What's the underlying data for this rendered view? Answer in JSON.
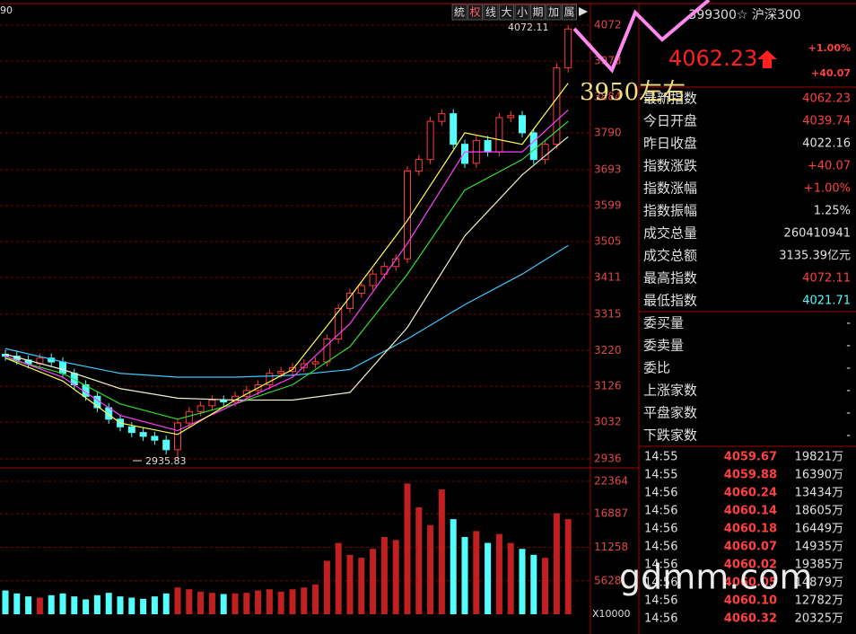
{
  "corner_label": "90",
  "toolbar": [
    "統",
    "权",
    "线",
    "大",
    "小",
    "期",
    "加",
    "属"
  ],
  "chart_data": {
    "type": "candlestick",
    "open": [
      3210,
      3205,
      3195,
      3185,
      3200,
      3190,
      3160,
      3130,
      3100,
      3070,
      3040,
      3020,
      3005,
      2995,
      2985,
      2960,
      3030,
      3060,
      3075,
      3090,
      3085,
      3100,
      3115,
      3130,
      3160,
      3165,
      3175,
      3185,
      3190,
      3250,
      3330,
      3370,
      3390,
      3420,
      3440,
      3460,
      3690,
      3720,
      3820,
      3840,
      3760,
      3710,
      3770,
      3740,
      3830,
      3835,
      3790,
      3720,
      3760,
      3960
    ],
    "high": [
      3222,
      3217,
      3207,
      3212,
      3212,
      3202,
      3172,
      3142,
      3112,
      3082,
      3052,
      3032,
      3017,
      3007,
      2997,
      3042,
      3072,
      3087,
      3102,
      3102,
      3112,
      3127,
      3142,
      3172,
      3177,
      3187,
      3197,
      3202,
      3262,
      3342,
      3382,
      3402,
      3432,
      3452,
      3472,
      3702,
      3732,
      3832,
      3852,
      3852,
      3772,
      3782,
      3782,
      3842,
      3847,
      3847,
      3802,
      3772,
      3972,
      4072
    ],
    "low": [
      3193,
      3183,
      3173,
      3173,
      3178,
      3148,
      3118,
      3088,
      3058,
      3028,
      3008,
      2993,
      2983,
      2973,
      2948,
      2936,
      3018,
      3048,
      3063,
      3073,
      3073,
      3088,
      3103,
      3118,
      3148,
      3153,
      3163,
      3173,
      3178,
      3238,
      3318,
      3358,
      3378,
      3408,
      3428,
      3448,
      3678,
      3708,
      3808,
      3748,
      3698,
      3698,
      3728,
      3728,
      3818,
      3778,
      3708,
      3708,
      3748,
      3948
    ],
    "close": [
      3205,
      3195,
      3185,
      3200,
      3190,
      3160,
      3130,
      3100,
      3070,
      3040,
      3020,
      3005,
      2995,
      2985,
      2960,
      3030,
      3060,
      3075,
      3090,
      3085,
      3100,
      3115,
      3130,
      3160,
      3165,
      3175,
      3185,
      3190,
      3250,
      3330,
      3370,
      3390,
      3420,
      3440,
      3460,
      3690,
      3720,
      3820,
      3840,
      3760,
      3710,
      3770,
      3740,
      3830,
      3835,
      3790,
      3720,
      3760,
      3960,
      4062
    ],
    "ylim": [
      2936,
      4072
    ],
    "yticks": [
      4072,
      3978,
      3884,
      3790,
      3693,
      3599,
      3505,
      3411,
      3315,
      3220,
      3126,
      3032,
      2936
    ],
    "high_label": "4072.11",
    "low_label": "2935.83",
    "annotation": "3950左右",
    "up_color": "#ff3c3c",
    "down_color": "#54fcfc",
    "grid": true,
    "ma": [
      {
        "color": "#3ec8ff",
        "x": [
          0,
          5,
          10,
          15,
          20,
          25,
          30,
          35,
          40,
          45,
          49
        ],
        "values": [
          3225,
          3190,
          3160,
          3150,
          3150,
          3155,
          3170,
          3250,
          3340,
          3420,
          3495
        ]
      },
      {
        "color": "#f0f0c8",
        "x": [
          0,
          5,
          10,
          15,
          20,
          25,
          30,
          35,
          40,
          45,
          49
        ],
        "values": [
          3210,
          3170,
          3120,
          3095,
          3090,
          3090,
          3110,
          3280,
          3520,
          3680,
          3780
        ]
      },
      {
        "color": "#30e030",
        "x": [
          0,
          5,
          10,
          15,
          20,
          25,
          30,
          35,
          40,
          45,
          49
        ],
        "values": [
          3200,
          3160,
          3080,
          3040,
          3080,
          3130,
          3230,
          3420,
          3640,
          3720,
          3820
        ]
      },
      {
        "color": "#ff40ff",
        "x": [
          0,
          5,
          10,
          15,
          20,
          25,
          30,
          35,
          40,
          45,
          49
        ],
        "values": [
          3205,
          3150,
          3050,
          3010,
          3080,
          3150,
          3290,
          3500,
          3740,
          3740,
          3850
        ]
      },
      {
        "color": "#ffff50",
        "x": [
          0,
          5,
          10,
          15,
          20,
          25,
          30,
          35,
          40,
          45,
          49
        ],
        "values": [
          3200,
          3140,
          3030,
          3000,
          3090,
          3170,
          3360,
          3560,
          3790,
          3760,
          3920
        ]
      }
    ],
    "volume": {
      "values": [
        4000,
        3500,
        3000,
        2800,
        3200,
        3500,
        3000,
        2500,
        3200,
        3600,
        3000,
        2800,
        2600,
        3000,
        3500,
        4500,
        4200,
        3800,
        3600,
        3400,
        3500,
        3600,
        4000,
        4200,
        3800,
        4200,
        4500,
        5000,
        9000,
        12000,
        10000,
        9500,
        11000,
        13000,
        12500,
        22000,
        18000,
        15000,
        21000,
        16000,
        13000,
        14000,
        12000,
        13500,
        12000,
        11000,
        10000,
        9500,
        17000,
        16000
      ],
      "ylim": [
        0,
        22364
      ],
      "yticks": [
        22364,
        16887,
        11258,
        5628
      ],
      "unit_label": "X10000"
    }
  },
  "quote": {
    "code_name": "399300☆ 沪深300",
    "price": "4062.23",
    "change_pct": "+1.00%",
    "change": "+40.07",
    "rows": [
      [
        "最新指数",
        "4062.23",
        "#ff4040"
      ],
      [
        "今日开盘",
        "4039.74",
        "#ff4040"
      ],
      [
        "昨日收盘",
        "4022.16",
        "#e0e0e0"
      ],
      [
        "指数涨跌",
        "+40.07",
        "#ff4040"
      ],
      [
        "指数涨幅",
        "+1.00%",
        "#ff4040"
      ],
      [
        "指数振幅",
        "1.25%",
        "#e0e0e0"
      ],
      [
        "成交总量",
        "260410941",
        "#e0e0e0"
      ],
      [
        "成交总额",
        "3135.39亿元",
        "#e0e0e0"
      ],
      [
        "最高指数",
        "4072.11",
        "#ff4040"
      ],
      [
        "最低指数",
        "4021.71",
        "#54fcfc"
      ]
    ],
    "rows2": [
      [
        "委买量",
        "-"
      ],
      [
        "委卖量",
        "-"
      ],
      [
        "委比",
        "-"
      ],
      [
        "上涨家数",
        "-"
      ],
      [
        "平盘家数",
        "-"
      ],
      [
        "下跌家数",
        "-"
      ]
    ],
    "trades": [
      [
        "14:55",
        "4059.67",
        "19821万"
      ],
      [
        "14:55",
        "4059.88",
        "16390万"
      ],
      [
        "14:56",
        "4060.24",
        "13434万"
      ],
      [
        "14:56",
        "4060.14",
        "18605万"
      ],
      [
        "14:56",
        "4060.18",
        "16449万"
      ],
      [
        "14:56",
        "4060.07",
        "14935万"
      ],
      [
        "14:56",
        "4060.02",
        "19385万"
      ],
      [
        "14:56",
        "4060.05",
        "14879万"
      ],
      [
        "14:56",
        "4060.10",
        "12782万"
      ],
      [
        "14:56",
        "4060.32",
        "20325万"
      ]
    ]
  },
  "watermark": "gdmm.com"
}
